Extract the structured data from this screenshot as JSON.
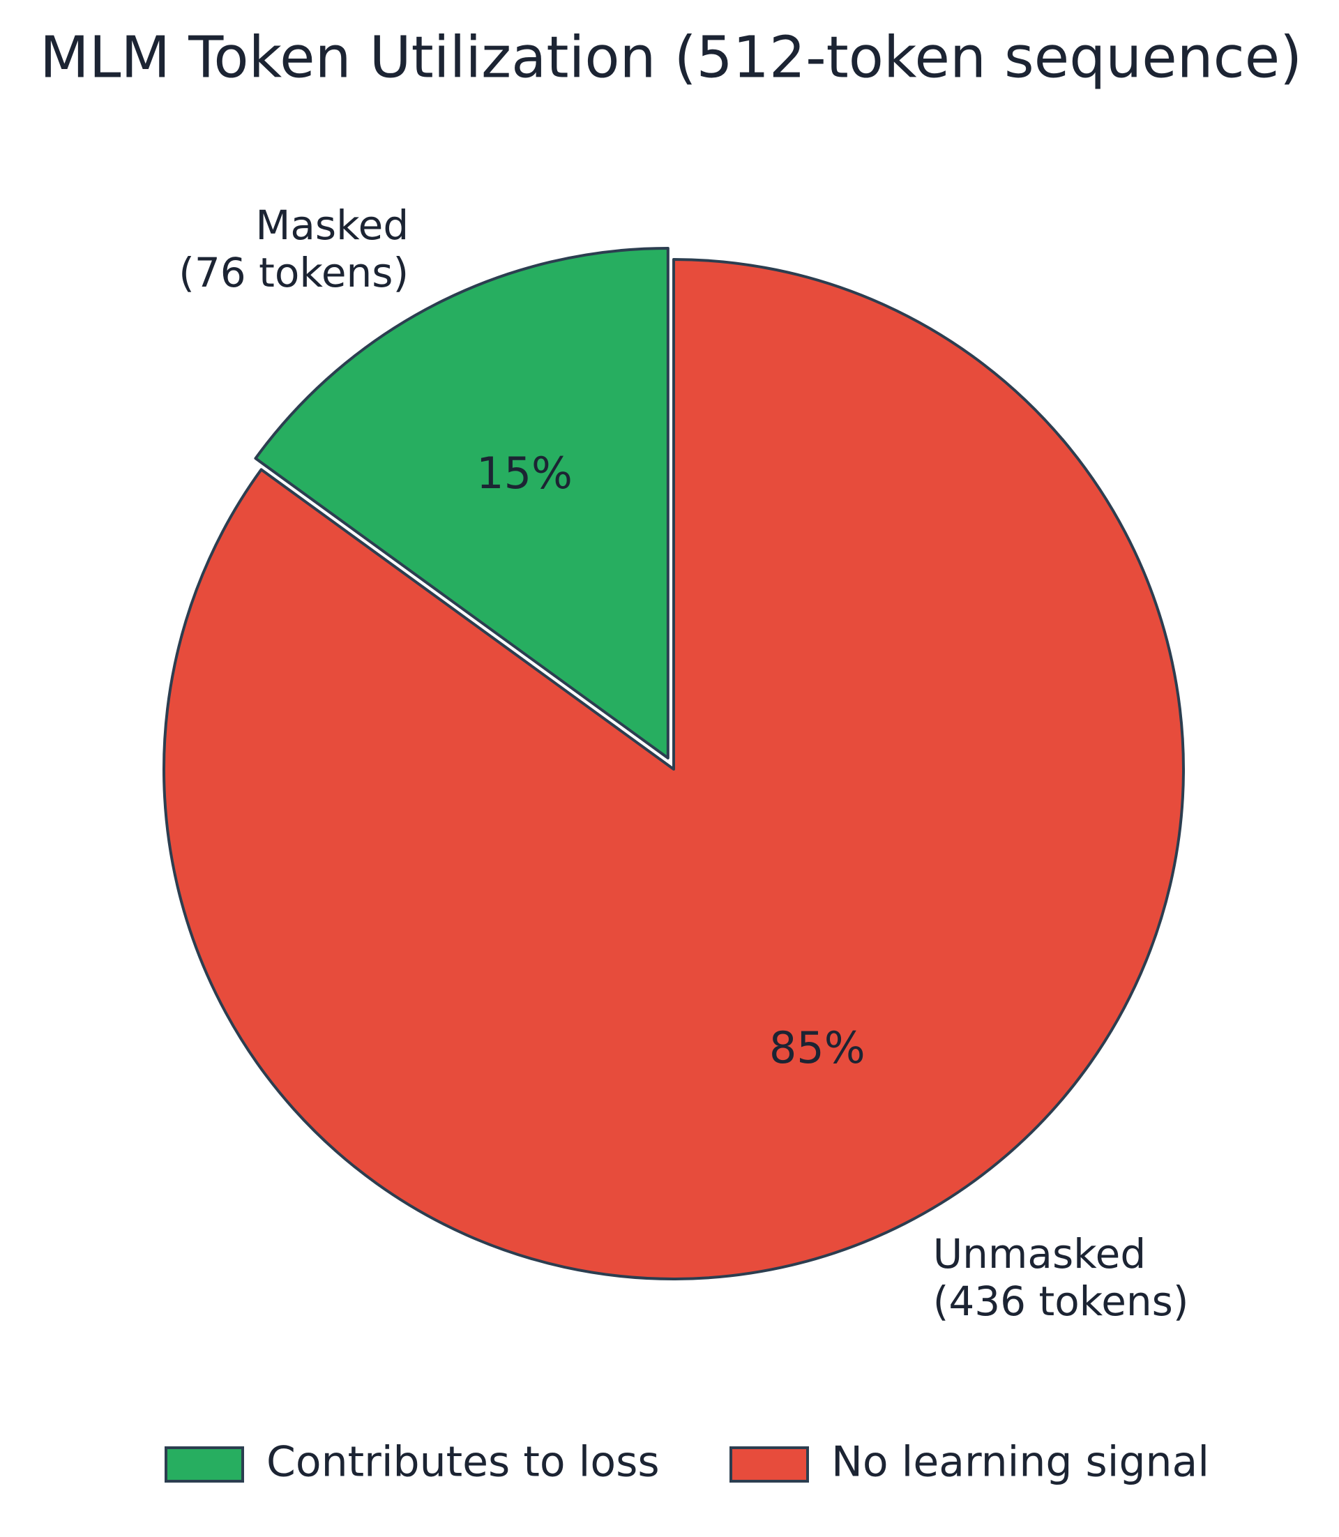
{
  "chart_data": {
    "type": "pie",
    "title": "MLM Token Utilization (512-token sequence)",
    "categories": [
      "Masked\n(76 tokens)",
      "Unmasked\n(436 tokens)"
    ],
    "values": [
      15,
      85
    ],
    "value_labels": [
      "15%",
      "85%"
    ],
    "colors": [
      "#27ae60",
      "#e74c3c"
    ],
    "legend": [
      "Contributes to loss",
      "No learning signal"
    ],
    "legend_position": "bottom"
  }
}
